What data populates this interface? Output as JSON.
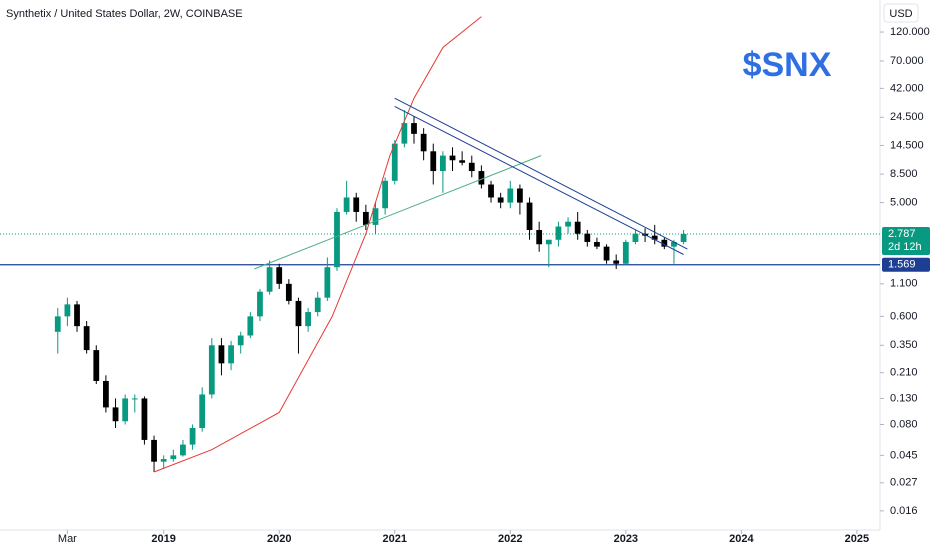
{
  "chart_data": {
    "type": "candlestick",
    "title": "Synthetix / United States Dollar, 2W, COINBASE",
    "currency": "USD",
    "watermark": "$SNX",
    "countdown": "2d 12h",
    "log": true,
    "up_color": "#089981",
    "down_color": "#000000",
    "open": [
      0.45,
      0.6,
      0.75,
      0.5,
      0.32,
      0.18,
      0.11,
      0.085,
      0.13,
      0.13,
      0.06,
      0.04,
      0.042,
      0.045,
      0.055,
      0.075,
      0.14,
      0.35,
      0.25,
      0.35,
      0.42,
      0.6,
      0.95,
      1.5,
      1.1,
      0.8,
      0.5,
      0.65,
      0.85,
      1.5,
      4.2,
      5.5,
      4.2,
      3.3,
      4.5,
      7.5,
      15,
      22,
      18,
      13,
      9,
      12,
      11,
      10.5,
      9,
      7,
      5.5,
      5,
      6.5,
      5,
      3,
      2.3,
      2.5,
      3.2,
      3.5,
      2.8,
      2.4,
      2.2,
      1.7,
      1.6,
      2.4,
      2.8,
      2.7,
      2.5,
      2.2,
      2.4
    ],
    "high": [
      0.7,
      0.85,
      0.8,
      0.55,
      0.35,
      0.2,
      0.13,
      0.14,
      0.14,
      0.135,
      0.065,
      0.045,
      0.05,
      0.06,
      0.08,
      0.16,
      0.4,
      0.4,
      0.38,
      0.45,
      0.65,
      1.0,
      1.7,
      1.6,
      1.2,
      0.85,
      0.7,
      0.95,
      1.8,
      4.5,
      7.5,
      6.0,
      4.8,
      5.0,
      8.0,
      16,
      28,
      25,
      20,
      15,
      13,
      14,
      13,
      12,
      10,
      7.5,
      6,
      7.5,
      7,
      5.5,
      3.5,
      2.5,
      3.5,
      3.8,
      4.2,
      3.0,
      2.6,
      2.3,
      1.9,
      2.5,
      3.0,
      3.1,
      3.3,
      2.6,
      2.5,
      3.0
    ],
    "low": [
      0.3,
      0.5,
      0.45,
      0.3,
      0.17,
      0.1,
      0.075,
      0.08,
      0.1,
      0.055,
      0.033,
      0.035,
      0.04,
      0.044,
      0.05,
      0.07,
      0.13,
      0.2,
      0.22,
      0.3,
      0.4,
      0.55,
      0.9,
      1.0,
      0.75,
      0.3,
      0.45,
      0.6,
      0.8,
      1.4,
      4.0,
      3.5,
      3.0,
      2.8,
      4.0,
      7,
      14,
      15,
      11,
      7,
      6,
      9,
      10,
      8,
      6.5,
      5,
      4.5,
      4.5,
      4,
      2.5,
      2,
      1.5,
      2.2,
      2.8,
      2.5,
      2.2,
      2.1,
      1.6,
      1.45,
      1.55,
      2.3,
      2.4,
      2.3,
      2.1,
      1.6,
      2.3
    ],
    "close": [
      0.6,
      0.75,
      0.5,
      0.32,
      0.18,
      0.11,
      0.085,
      0.13,
      0.13,
      0.06,
      0.04,
      0.042,
      0.045,
      0.055,
      0.075,
      0.14,
      0.35,
      0.25,
      0.35,
      0.42,
      0.6,
      0.95,
      1.5,
      1.1,
      0.8,
      0.5,
      0.65,
      0.85,
      1.5,
      4.2,
      5.5,
      4.2,
      3.3,
      4.5,
      7.5,
      15,
      22,
      18,
      13,
      9,
      12,
      11,
      10.5,
      9,
      7,
      5.5,
      5,
      6.5,
      5,
      3,
      2.3,
      2.5,
      3.2,
      3.5,
      2.8,
      2.4,
      2.2,
      1.7,
      1.6,
      2.4,
      2.8,
      2.7,
      2.5,
      2.2,
      2.4,
      2.787
    ],
    "xlim": [
      -6,
      85.4
    ],
    "ylim": [
      0.0112,
      218
    ],
    "xticks": [
      {
        "value": 1,
        "label": "Mar"
      },
      {
        "value": 11,
        "label": "2019"
      },
      {
        "value": 23,
        "label": "2020"
      },
      {
        "value": 35,
        "label": "2021"
      },
      {
        "value": 47,
        "label": "2022"
      },
      {
        "value": 59,
        "label": "2023"
      },
      {
        "value": 71,
        "label": "2024"
      },
      {
        "value": 83,
        "label": "2025"
      }
    ],
    "yticks": [
      {
        "value": 120,
        "label": "120.000"
      },
      {
        "value": 70,
        "label": "70.000"
      },
      {
        "value": 42,
        "label": "42.000"
      },
      {
        "value": 24.5,
        "label": "24.500"
      },
      {
        "value": 14.5,
        "label": "14.500"
      },
      {
        "value": 8.5,
        "label": "8.500"
      },
      {
        "value": 5,
        "label": "5.000"
      },
      {
        "value": 1.1,
        "label": "1.100"
      },
      {
        "value": 0.6,
        "label": "0.600"
      },
      {
        "value": 0.35,
        "label": "0.350"
      },
      {
        "value": 0.21,
        "label": "0.210"
      },
      {
        "value": 0.13,
        "label": "0.130"
      },
      {
        "value": 0.08,
        "label": "0.080"
      },
      0.045,
      0.027,
      0.016
    ],
    "hline": {
      "value": 1.569,
      "color": "#1c3f94"
    },
    "last_color": "#089981",
    "drawings": [
      {
        "color": "#e53935",
        "x": [
          10,
          16,
          23,
          28.5,
          32,
          34.5,
          37,
          40,
          44
        ],
        "y": [
          0.033,
          0.05,
          0.1,
          0.6,
          2.8,
          12,
          35,
          90,
          160
        ]
      },
      {
        "color": "#4caf82",
        "x": [
          20.4,
          50.2
        ],
        "y": [
          1.45,
          12
        ]
      },
      {
        "color": "#1c3f94",
        "x": [
          35,
          65.4
        ],
        "y": [
          35,
          2.1
        ]
      },
      {
        "color": "#1c3f94",
        "x": [
          35,
          65
        ],
        "y": [
          30,
          1.9
        ]
      }
    ]
  }
}
